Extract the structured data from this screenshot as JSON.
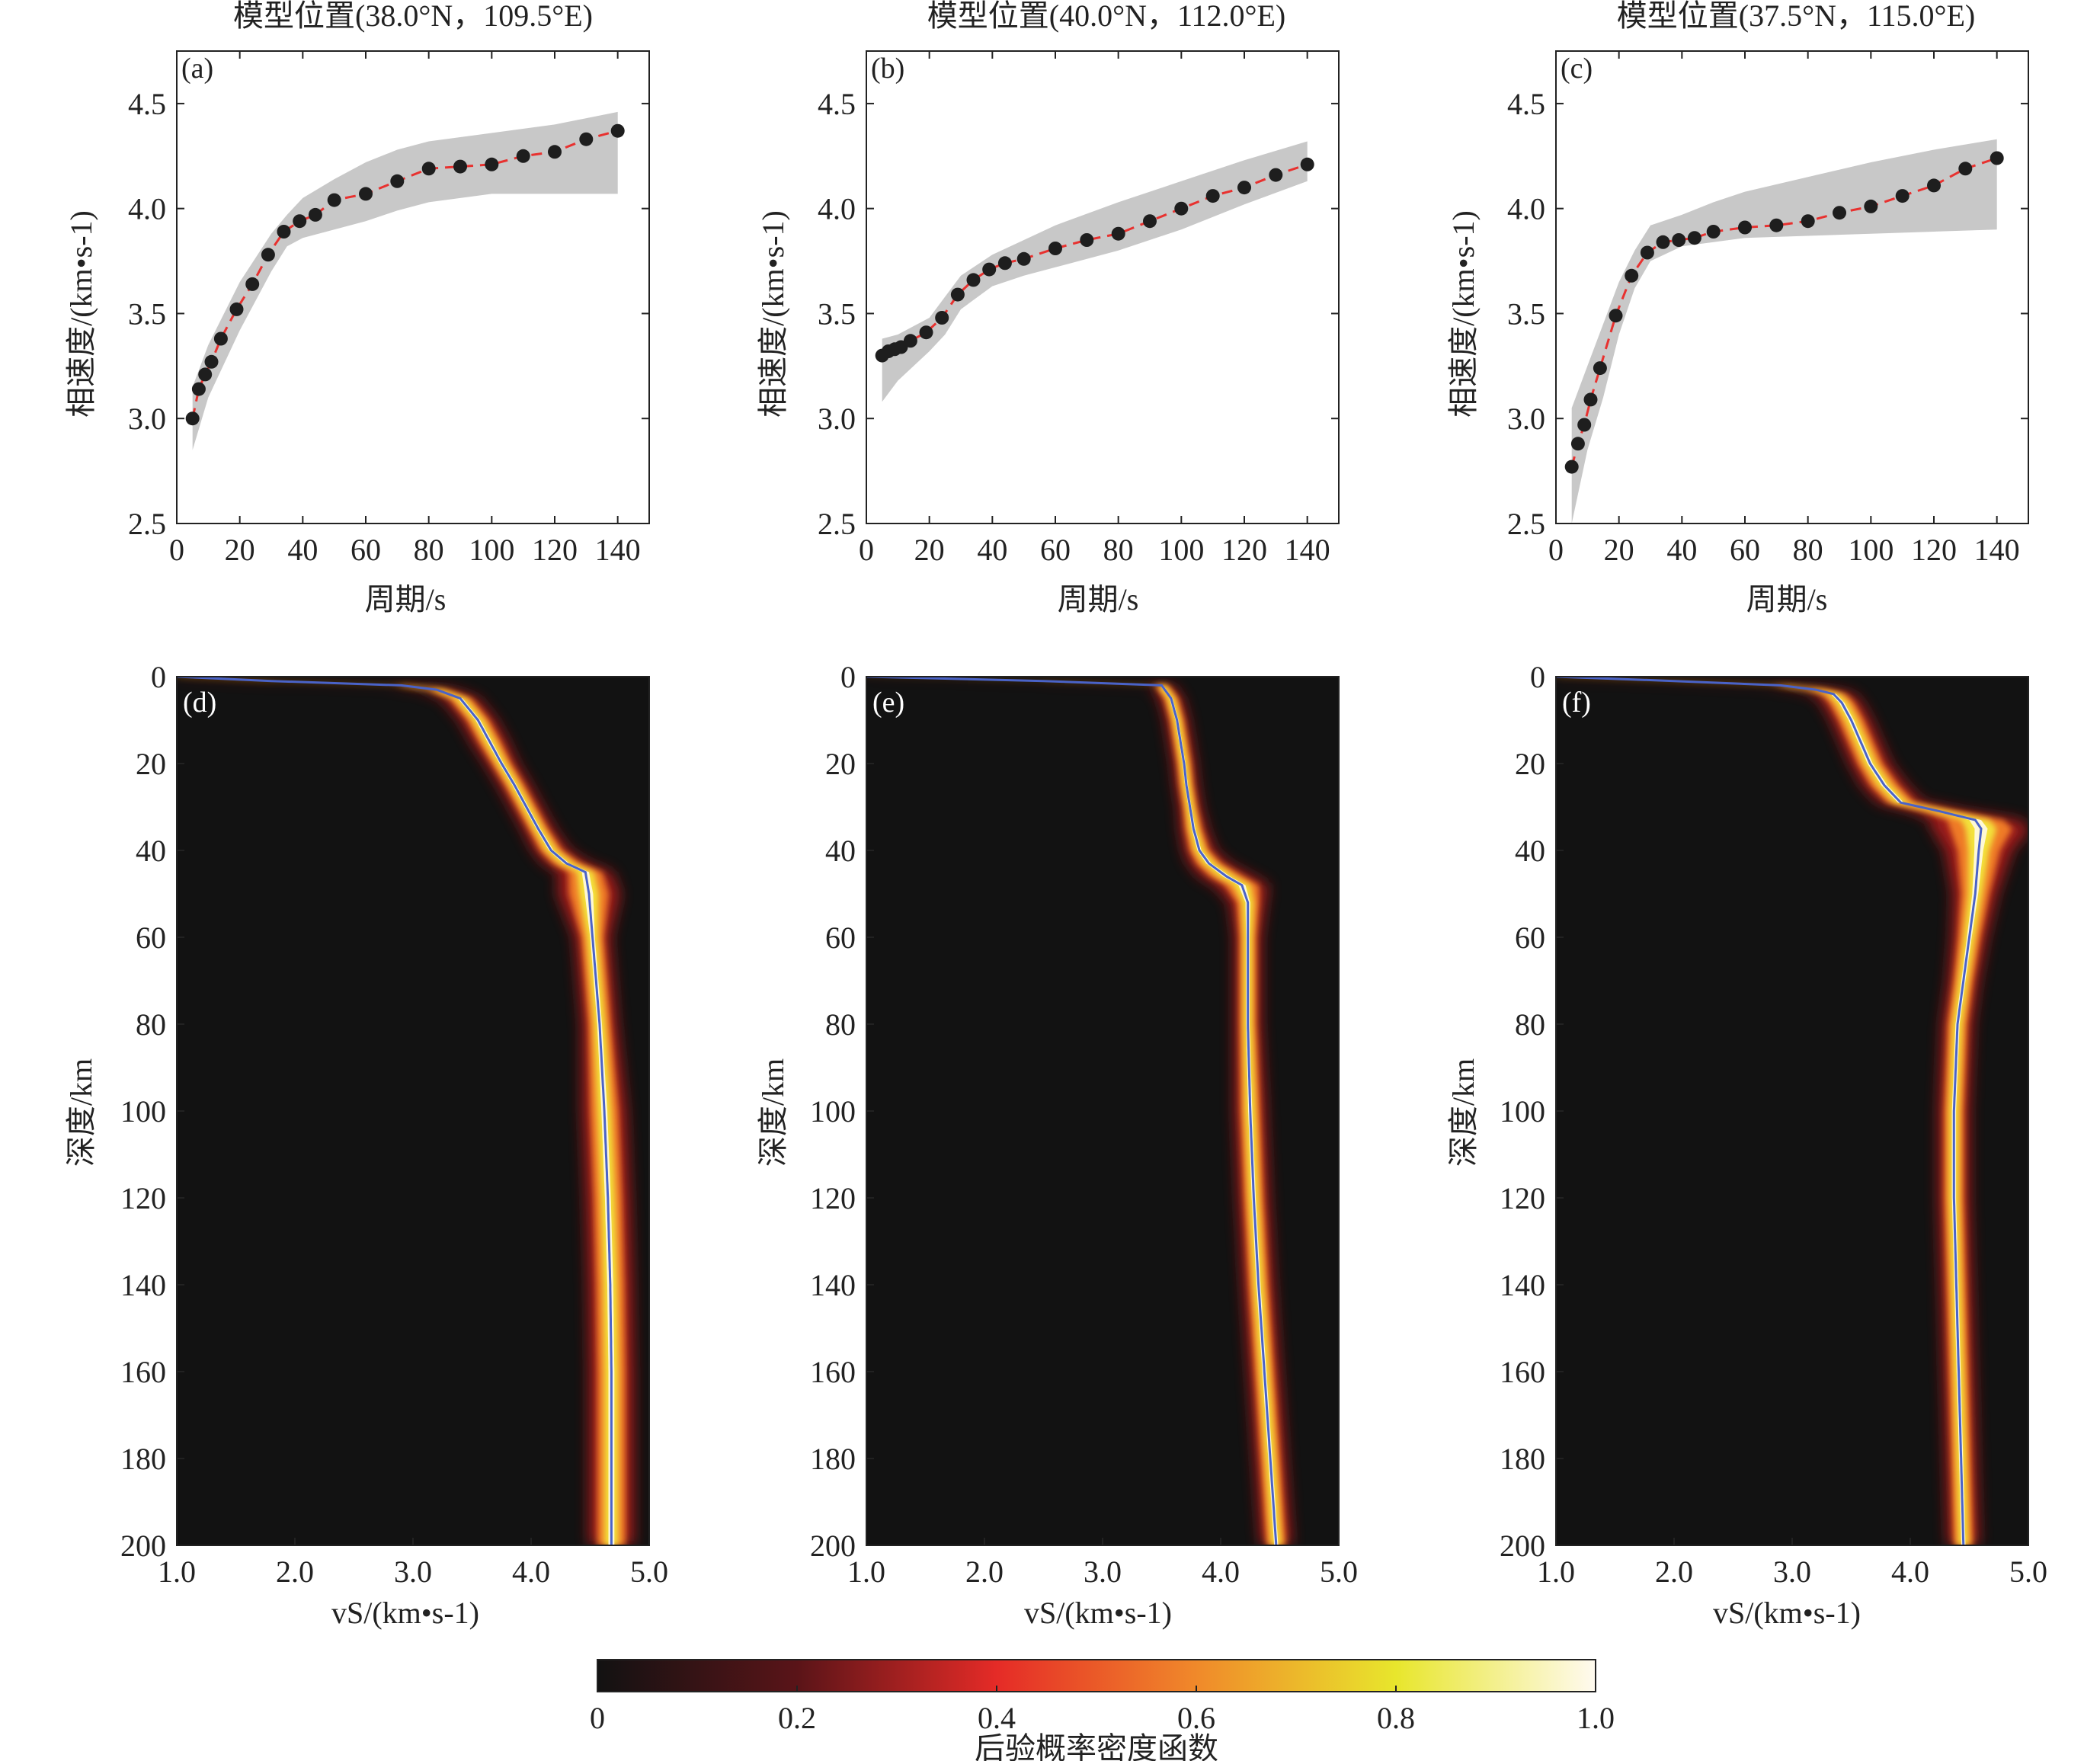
{
  "chart_data": [
    {
      "type": "scatter",
      "panel_label": "(a)",
      "title": "模型位置(38.0°N，109.5°E)",
      "xlabel": "周期/s",
      "ylabel": "相速度/(km•s-1)",
      "xlim": [
        0,
        150
      ],
      "ylim": [
        2.5,
        4.75
      ],
      "xticks": [
        0,
        20,
        40,
        60,
        80,
        100,
        120,
        140
      ],
      "yticks": [
        2.5,
        3.0,
        3.5,
        4.0,
        4.5
      ],
      "x": [
        5,
        7,
        9,
        11,
        14,
        19,
        24,
        29,
        34,
        39,
        44,
        50,
        60,
        70,
        80,
        90,
        100,
        110,
        120,
        130,
        140
      ],
      "y": [
        3.0,
        3.14,
        3.21,
        3.27,
        3.38,
        3.52,
        3.64,
        3.78,
        3.89,
        3.94,
        3.97,
        4.04,
        4.07,
        4.13,
        4.19,
        4.2,
        4.21,
        4.25,
        4.27,
        4.33,
        4.37
      ],
      "band_x": [
        5,
        10,
        20,
        30,
        35,
        40,
        50,
        60,
        70,
        80,
        100,
        120,
        140
      ],
      "band_lower": [
        2.85,
        3.1,
        3.42,
        3.7,
        3.82,
        3.86,
        3.9,
        3.94,
        3.99,
        4.03,
        4.07,
        4.07,
        4.07
      ],
      "band_upper": [
        3.15,
        3.35,
        3.65,
        3.88,
        3.97,
        4.05,
        4.14,
        4.22,
        4.28,
        4.32,
        4.36,
        4.4,
        4.46
      ]
    },
    {
      "type": "scatter",
      "panel_label": "(b)",
      "title": "模型位置(40.0°N，112.0°E)",
      "xlabel": "周期/s",
      "ylabel": "相速度/(km•s-1)",
      "xlim": [
        0,
        150
      ],
      "ylim": [
        2.5,
        4.75
      ],
      "xticks": [
        0,
        20,
        40,
        60,
        80,
        100,
        120,
        140
      ],
      "yticks": [
        2.5,
        3.0,
        3.5,
        4.0,
        4.5
      ],
      "x": [
        5,
        7,
        9,
        11,
        14,
        19,
        24,
        29,
        34,
        39,
        44,
        50,
        60,
        70,
        80,
        90,
        100,
        110,
        120,
        130,
        140
      ],
      "y": [
        3.3,
        3.32,
        3.33,
        3.34,
        3.37,
        3.41,
        3.48,
        3.59,
        3.66,
        3.71,
        3.74,
        3.76,
        3.81,
        3.85,
        3.88,
        3.94,
        4.0,
        4.06,
        4.1,
        4.16,
        4.21
      ],
      "band_x": [
        5,
        10,
        20,
        25,
        30,
        40,
        50,
        60,
        80,
        100,
        120,
        140
      ],
      "band_lower": [
        3.08,
        3.18,
        3.32,
        3.4,
        3.52,
        3.63,
        3.68,
        3.72,
        3.8,
        3.9,
        4.02,
        4.13
      ],
      "band_upper": [
        3.38,
        3.4,
        3.48,
        3.58,
        3.68,
        3.78,
        3.85,
        3.92,
        4.03,
        4.13,
        4.23,
        4.32
      ]
    },
    {
      "type": "scatter",
      "panel_label": "(c)",
      "title": "模型位置(37.5°N，115.0°E)",
      "xlabel": "周期/s",
      "ylabel": "相速度/(km•s-1)",
      "xlim": [
        0,
        150
      ],
      "ylim": [
        2.5,
        4.75
      ],
      "xticks": [
        0,
        20,
        40,
        60,
        80,
        100,
        120,
        140
      ],
      "yticks": [
        2.5,
        3.0,
        3.5,
        4.0,
        4.5
      ],
      "x": [
        5,
        7,
        9,
        11,
        14,
        19,
        24,
        29,
        34,
        39,
        44,
        50,
        60,
        70,
        80,
        90,
        100,
        110,
        120,
        130,
        140
      ],
      "y": [
        2.77,
        2.88,
        2.97,
        3.09,
        3.24,
        3.49,
        3.68,
        3.79,
        3.84,
        3.85,
        3.86,
        3.89,
        3.91,
        3.92,
        3.94,
        3.98,
        4.01,
        4.06,
        4.11,
        4.19,
        4.24
      ],
      "band_x": [
        5,
        10,
        15,
        20,
        25,
        30,
        40,
        50,
        60,
        80,
        100,
        120,
        140
      ],
      "band_lower": [
        2.5,
        2.85,
        3.1,
        3.4,
        3.62,
        3.75,
        3.82,
        3.84,
        3.86,
        3.87,
        3.88,
        3.89,
        3.9
      ],
      "band_upper": [
        3.05,
        3.25,
        3.45,
        3.65,
        3.8,
        3.92,
        3.97,
        4.03,
        4.08,
        4.15,
        4.22,
        4.28,
        4.33
      ]
    },
    {
      "type": "heatmap",
      "panel_label": "(d)",
      "xlabel": "vS/(km•s-1)",
      "ylabel": "深度/km",
      "xlim": [
        1.0,
        5.0
      ],
      "ylim": [
        200,
        0
      ],
      "xticks": [
        "1.0",
        "2.0",
        "3.0",
        "4.0",
        "5.0"
      ],
      "yticks": [
        0,
        20,
        40,
        60,
        80,
        100,
        120,
        140,
        160,
        180,
        200
      ],
      "profile_depth": [
        0,
        1,
        2,
        3,
        5,
        10,
        15,
        20,
        25,
        30,
        35,
        40,
        43,
        45,
        50,
        60,
        80,
        100,
        120,
        140,
        160,
        180,
        200
      ],
      "profile_vs": [
        1.0,
        1.8,
        2.9,
        3.2,
        3.4,
        3.55,
        3.65,
        3.75,
        3.86,
        3.96,
        4.06,
        4.17,
        4.3,
        4.46,
        4.49,
        4.52,
        4.58,
        4.62,
        4.65,
        4.67,
        4.68,
        4.68,
        4.68
      ],
      "band_halfwidth": [
        0.06,
        0.06,
        0.06,
        0.07,
        0.08,
        0.08,
        0.08,
        0.07,
        0.07,
        0.07,
        0.07,
        0.08,
        0.1,
        0.12,
        0.14,
        0.08,
        0.08,
        0.1,
        0.1,
        0.1,
        0.1,
        0.1,
        0.1
      ]
    },
    {
      "type": "heatmap",
      "panel_label": "(e)",
      "xlabel": "vS/(km•s-1)",
      "ylabel": "深度/km",
      "xlim": [
        1.0,
        5.0
      ],
      "ylim": [
        200,
        0
      ],
      "xticks": [
        "1.0",
        "2.0",
        "3.0",
        "4.0",
        "5.0"
      ],
      "yticks": [
        0,
        20,
        40,
        60,
        80,
        100,
        120,
        140,
        160,
        180,
        200
      ],
      "profile_depth": [
        0,
        1,
        2,
        5,
        10,
        15,
        20,
        25,
        30,
        35,
        40,
        43,
        46,
        48,
        52,
        60,
        80,
        100,
        120,
        140,
        160,
        180,
        200
      ],
      "profile_vs": [
        1.0,
        2.5,
        3.5,
        3.58,
        3.63,
        3.66,
        3.69,
        3.71,
        3.74,
        3.77,
        3.82,
        3.9,
        4.05,
        4.18,
        4.23,
        4.23,
        4.23,
        4.25,
        4.28,
        4.32,
        4.37,
        4.42,
        4.47
      ],
      "band_halfwidth": [
        0.04,
        0.05,
        0.05,
        0.05,
        0.05,
        0.05,
        0.05,
        0.05,
        0.05,
        0.06,
        0.07,
        0.09,
        0.12,
        0.12,
        0.08,
        0.06,
        0.06,
        0.07,
        0.07,
        0.07,
        0.07,
        0.07,
        0.07
      ]
    },
    {
      "type": "heatmap",
      "panel_label": "(f)",
      "xlabel": "vS/(km•s-1)",
      "ylabel": "深度/km",
      "xlim": [
        1.0,
        5.0
      ],
      "ylim": [
        200,
        0
      ],
      "xticks": [
        "1.0",
        "2.0",
        "3.0",
        "4.0",
        "5.0"
      ],
      "yticks": [
        0,
        20,
        40,
        60,
        80,
        100,
        120,
        140,
        160,
        180,
        200
      ],
      "profile_depth": [
        0,
        1,
        2,
        3,
        4,
        6,
        10,
        15,
        20,
        25,
        29,
        31,
        33,
        35,
        40,
        50,
        60,
        70,
        80,
        100,
        120,
        140,
        160,
        180,
        200
      ],
      "profile_vs": [
        1.0,
        2.0,
        2.9,
        3.2,
        3.35,
        3.42,
        3.5,
        3.58,
        3.66,
        3.78,
        3.92,
        4.25,
        4.55,
        4.6,
        4.58,
        4.55,
        4.5,
        4.45,
        4.4,
        4.37,
        4.37,
        4.39,
        4.41,
        4.43,
        4.45
      ],
      "band_halfwidth": [
        0.06,
        0.06,
        0.07,
        0.08,
        0.09,
        0.09,
        0.09,
        0.09,
        0.09,
        0.1,
        0.1,
        0.12,
        0.2,
        0.22,
        0.15,
        0.1,
        0.08,
        0.07,
        0.07,
        0.07,
        0.07,
        0.07,
        0.07,
        0.07,
        0.07
      ]
    }
  ],
  "colorbar": {
    "label": "后验概率密度函数",
    "ticks": [
      "0",
      "0.2",
      "0.4",
      "0.6",
      "0.8",
      "1.0"
    ]
  },
  "colors": {
    "band": "#c8c8c8",
    "points": "#1e1e1e",
    "fit_line": "#e8312f",
    "heat_bg": "#121212",
    "profile": "#4a63c8"
  }
}
